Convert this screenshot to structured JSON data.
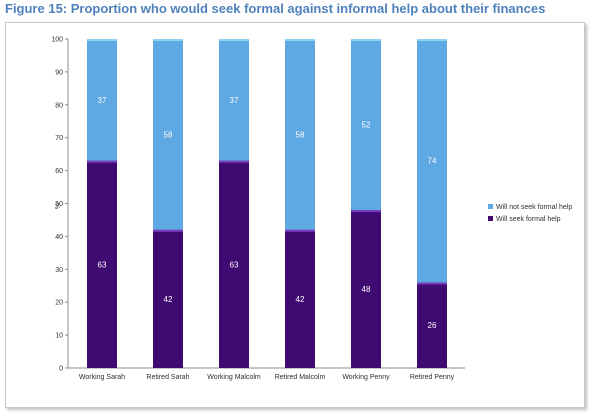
{
  "figure_title": "Figure 15: Proportion who would seek formal against informal help about their finances",
  "colors": {
    "formal": "#3f0a72",
    "formal_cap": "#7a3cc0",
    "informal": "#5ea8e4",
    "informal_cap": "#8fd0f2",
    "title": "#4f81bd"
  },
  "chart_data": {
    "type": "bar",
    "stacked": true,
    "title": "",
    "xlabel": "",
    "ylabel": "%",
    "ylim": [
      0,
      100
    ],
    "yticks": [
      0,
      10,
      20,
      30,
      40,
      50,
      60,
      70,
      80,
      90,
      100
    ],
    "grid": false,
    "legend_position": "right",
    "categories": [
      "Working Sarah",
      "Retired Sarah",
      "Working Malcolm",
      "Retired Malcolm",
      "Working Penny",
      "Retired Penny"
    ],
    "series": [
      {
        "name": "Will seek formal help",
        "values": [
          63,
          42,
          63,
          42,
          48,
          26
        ],
        "color": "#3f0a72"
      },
      {
        "name": "Will not seek formal help",
        "values": [
          37,
          58,
          37,
          58,
          52,
          74
        ],
        "color": "#5ea8e4"
      }
    ],
    "legend_order": [
      "Will not seek formal help",
      "Will seek formal help"
    ]
  }
}
